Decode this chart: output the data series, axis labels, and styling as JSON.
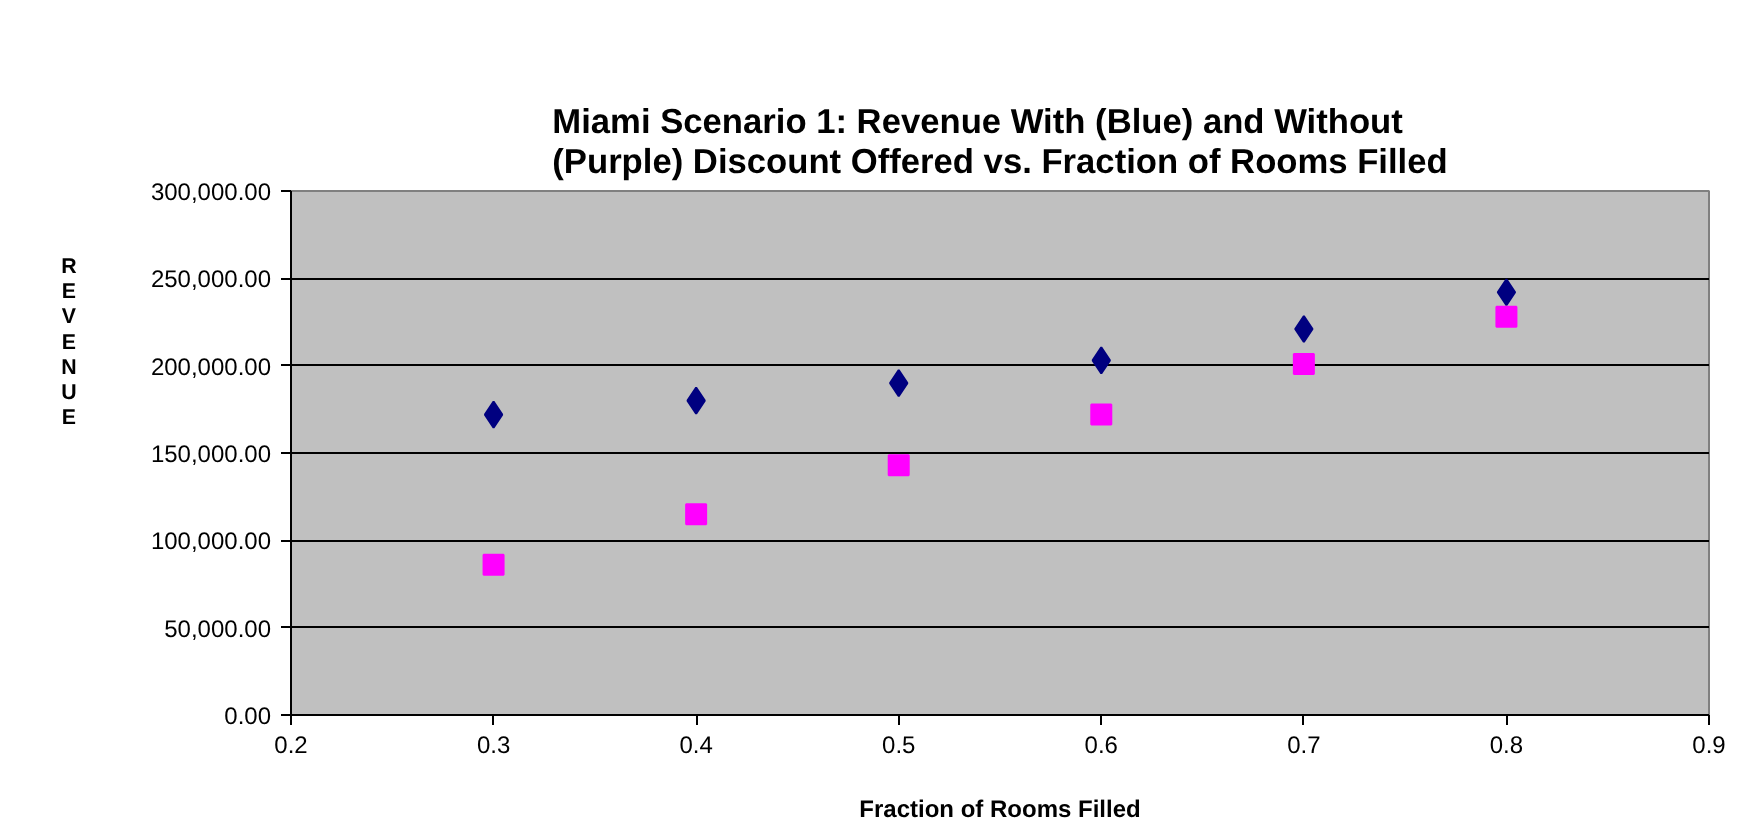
{
  "chart_data": {
    "type": "scatter",
    "title": "Miami Scenario 1: Revenue With (Blue) and Without\n(Purple) Discount Offered vs. Fraction of Rooms Filled",
    "xlabel": "Fraction of Rooms Filled",
    "ylabel": "REVENUE",
    "x": [
      0.3,
      0.4,
      0.5,
      0.6,
      0.7,
      0.8
    ],
    "series": [
      {
        "color": "#000080",
        "marker": "diamond",
        "values": [
          172000,
          180000,
          190000,
          203000,
          221000,
          242000
        ]
      },
      {
        "color": "#ff00ff",
        "marker": "square",
        "values": [
          86000,
          115000,
          143000,
          172000,
          201000,
          228000
        ]
      }
    ],
    "xlim": [
      0.2,
      0.9
    ],
    "xticks": [
      0.2,
      0.3,
      0.4,
      0.5,
      0.6,
      0.7,
      0.8,
      0.9
    ],
    "ylim": [
      0,
      300000
    ],
    "yticks": [
      {
        "value": 0,
        "label": "0.00"
      },
      {
        "value": 50000,
        "label": "50,000.00"
      },
      {
        "value": 100000,
        "label": "100,000.00"
      },
      {
        "value": 150000,
        "label": "150,000.00"
      },
      {
        "value": 200000,
        "label": "200,000.00"
      },
      {
        "value": 250000,
        "label": "250,000.00"
      },
      {
        "value": 300000,
        "label": "300,000.00"
      }
    ],
    "grid": "y"
  }
}
